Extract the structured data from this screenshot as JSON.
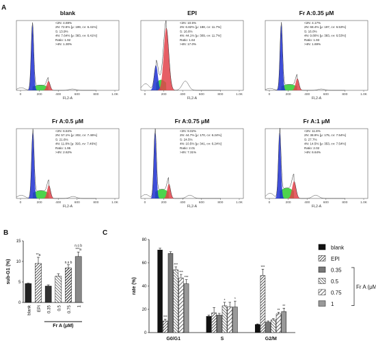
{
  "panel_labels": {
    "a": "A",
    "b": "B",
    "c": "C"
  },
  "flow": {
    "x_ticks": [
      "0",
      "200",
      "400",
      "600",
      "800",
      "1.0K"
    ],
    "x_label": "FL2-A",
    "panels": [
      {
        "title": "blank",
        "stats": [
          "<2N: 4.69%",
          "2N: 72.6% [μ: 199, cv: 6.41%]",
          "S: 13.9%",
          "4N: 7.64% [μ: 383, cv: 6.41%]",
          "Ratio: 1.92",
          ">4N: 1.30%"
        ]
      },
      {
        "title": "EPI",
        "stats": [
          "<2N: 10.5%",
          "2N: 6.82% [μ: 188, cv: 11.7%]",
          "S: 16.6%",
          "4N: 44.1% [μ: 309, cv: 11.7%]",
          "Ratio: 1.64",
          ">4N: 17.0%"
        ]
      },
      {
        "title": "Fr A:0.35 μM",
        "stats": [
          "<2N: 4.17%",
          "2N: 68.4% [μ: 197, cv: 6.53%]",
          "S: 16.0%",
          "4N: 9.80% [μ: 383, cv: 6.53%]",
          "Ratio: 1.93",
          ">4N: 1.69%"
        ]
      },
      {
        "title": "Fr A:0.5 μM",
        "stats": [
          "<2N: 6.84%",
          "2N: 57.1% [μ: 202, cv: 7.46%]",
          "S: 21.6%",
          "4N: 11.8% [μ: 393, cv: 7.46%]",
          "Ratio: 1.95",
          ">4N: 2.62%"
        ]
      },
      {
        "title": "Fr A:0.75 μM",
        "stats": [
          "<2N: 9.02%",
          "2N: 44.7% [μ: 170, cv: 6.24%]",
          "S: 24.5%",
          "4N: 10.5% [μ: 341, cv: 6.24%]",
          "Ratio: 2.01",
          ">4N: 7.31%"
        ]
      },
      {
        "title": "Fr A:1 μM",
        "stats": [
          "<2N: 11.8%",
          "2N: 38.9% [μ: 175, cv: 7.54%]",
          "S: 27.7%",
          "4N: 14.5% [μ: 353, cv: 7.54%]",
          "Ratio: 2.02",
          ">4N: 6.64%"
        ]
      }
    ]
  },
  "colors": {
    "g1": "#1d2fd1",
    "s": "#2ecc2e",
    "g2": "#e2424a",
    "outline": "#222222"
  },
  "chart_data": [
    {
      "type": "bar",
      "ylabel": "sub-G1 (%)",
      "ylim": [
        0,
        15
      ],
      "yticks": [
        "0",
        "5",
        "10",
        "15"
      ],
      "categories": [
        "blank",
        "EPI",
        "0.35",
        "0.5",
        "0.75",
        "1"
      ],
      "group_label": "Fr A (μM)",
      "values": [
        4.6,
        9.5,
        4.0,
        6.4,
        8.4,
        11.2
      ],
      "errors": [
        0.1,
        1.5,
        0.3,
        0.6,
        0.8,
        1.1
      ],
      "annotations": [
        "",
        "**a",
        "",
        "",
        "n.s b",
        "n.s b\n***a"
      ]
    },
    {
      "type": "bar",
      "ylabel": "rate (%)",
      "ylim": [
        0,
        80
      ],
      "yticks": [
        "0",
        "20",
        "40",
        "60",
        "80"
      ],
      "categories": [
        "G0/G1",
        "S",
        "G2/M"
      ],
      "legend_title": "Fr A (μM)",
      "series": [
        {
          "name": "blank",
          "values": [
            71,
            14,
            7
          ],
          "errors": [
            1.5,
            1.0,
            0.5
          ],
          "stars": [
            "",
            "",
            ""
          ]
        },
        {
          "name": "EPI",
          "values": [
            10,
            17,
            49
          ],
          "errors": [
            1.5,
            4.5,
            5.5
          ],
          "stars": [
            "***",
            "",
            "***"
          ]
        },
        {
          "name": "0.35",
          "values": [
            68,
            15,
            9
          ],
          "errors": [
            1.5,
            1.5,
            1.0
          ],
          "stars": [
            "",
            "",
            ""
          ]
        },
        {
          "name": "0.5",
          "values": [
            54,
            23,
            11
          ],
          "errors": [
            2.5,
            3.0,
            1.0
          ],
          "stars": [
            "***",
            "*",
            ""
          ]
        },
        {
          "name": "0.75",
          "values": [
            47,
            22,
            16
          ],
          "errors": [
            3.0,
            4.0,
            1.5
          ],
          "stars": [
            "***",
            "",
            "**"
          ]
        },
        {
          "name": "1",
          "values": [
            42,
            22,
            18
          ],
          "errors": [
            3.5,
            5.0,
            3.0
          ],
          "stars": [
            "***",
            "*",
            "**"
          ]
        }
      ]
    }
  ]
}
